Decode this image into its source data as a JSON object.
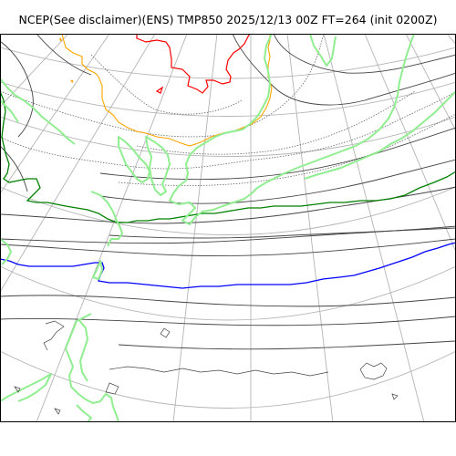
{
  "title": "NCEP(See disclaimer)(ENS) TMP850 2025/12/13 00Z FT=264 (init 0200Z)",
  "colors": {
    "background": "#ffffff",
    "frame": "#000000",
    "graticule": "#b4b4b4",
    "coastline": "#90ee90",
    "isotherm_regular": "#444444",
    "isotherm_dotted": "#666666",
    "isotherm_red": "#ff0000",
    "isotherm_orange": "#ffa500",
    "isotherm_green": "#008000",
    "isotherm_blue": "#0000ff"
  }
}
